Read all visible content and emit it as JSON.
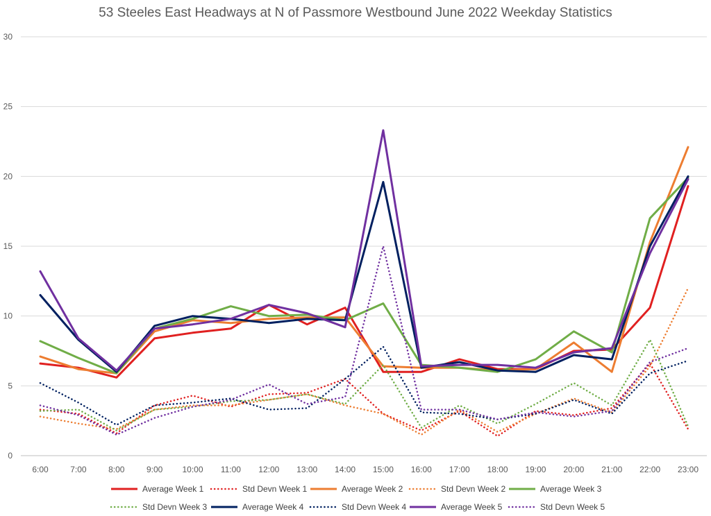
{
  "chart_data": {
    "type": "line",
    "title": "53 Steeles East Headways at N of Passmore Westbound June 2022 Weekday Statistics",
    "categories": [
      "6:00",
      "7:00",
      "8:00",
      "9:00",
      "10:00",
      "11:00",
      "12:00",
      "13:00",
      "14:00",
      "15:00",
      "16:00",
      "17:00",
      "18:00",
      "19:00",
      "20:00",
      "21:00",
      "22:00",
      "23:00"
    ],
    "ylim": [
      0,
      30
    ],
    "yticks": [
      "0",
      "5",
      "10",
      "15",
      "20",
      "25",
      "30"
    ],
    "grid": true,
    "legend_position": "bottom",
    "series": [
      {
        "name": "Average Week 1",
        "color": "#e02020",
        "dashed": false,
        "values": [
          6.6,
          6.3,
          5.6,
          8.4,
          8.8,
          9.1,
          10.8,
          9.4,
          10.6,
          6.0,
          6.0,
          6.9,
          6.2,
          6.2,
          7.5,
          7.6,
          10.6,
          19.3
        ]
      },
      {
        "name": "Std Devn Week 1",
        "color": "#e02020",
        "dashed": true,
        "values": [
          3.3,
          3.0,
          1.6,
          3.6,
          4.3,
          3.5,
          4.4,
          4.5,
          5.5,
          3.0,
          1.8,
          3.2,
          1.4,
          3.2,
          2.9,
          3.4,
          6.6,
          1.9
        ]
      },
      {
        "name": "Average Week 2",
        "color": "#ed7d31",
        "dashed": false,
        "values": [
          7.1,
          6.2,
          5.9,
          8.9,
          9.7,
          9.5,
          9.8,
          9.9,
          9.9,
          6.4,
          6.3,
          6.3,
          6.1,
          6.2,
          8.1,
          6.0,
          15.3,
          22.1
        ]
      },
      {
        "name": "Std Devn Week 2",
        "color": "#ed7d31",
        "dashed": true,
        "values": [
          2.8,
          2.3,
          1.9,
          3.3,
          3.6,
          3.6,
          4.0,
          4.4,
          3.6,
          3.0,
          1.5,
          3.3,
          1.7,
          3.0,
          4.1,
          3.1,
          6.4,
          12.0
        ]
      },
      {
        "name": "Average Week 3",
        "color": "#70ad47",
        "dashed": false,
        "values": [
          8.2,
          7.0,
          5.9,
          9.1,
          9.8,
          10.7,
          10.0,
          10.1,
          9.7,
          10.9,
          6.5,
          6.3,
          6.0,
          6.9,
          8.9,
          7.4,
          17.0,
          19.9
        ]
      },
      {
        "name": "Std Devn Week 3",
        "color": "#70ad47",
        "dashed": true,
        "values": [
          3.2,
          3.3,
          1.8,
          3.3,
          3.5,
          3.9,
          4.0,
          4.4,
          3.7,
          6.5,
          2.0,
          3.6,
          2.3,
          3.7,
          5.2,
          3.6,
          8.3,
          2.1
        ]
      },
      {
        "name": "Average Week 4",
        "color": "#002060",
        "dashed": false,
        "values": [
          11.5,
          8.3,
          6.0,
          9.3,
          10.0,
          9.8,
          9.5,
          9.8,
          9.7,
          19.6,
          6.3,
          6.7,
          6.1,
          6.0,
          7.2,
          6.9,
          15.0,
          20.0
        ]
      },
      {
        "name": "Std Devn Week 4",
        "color": "#002060",
        "dashed": true,
        "values": [
          5.2,
          3.8,
          2.2,
          3.6,
          3.8,
          4.1,
          3.3,
          3.4,
          5.5,
          7.8,
          3.1,
          3.0,
          2.6,
          3.0,
          4.0,
          3.0,
          5.9,
          6.8
        ]
      },
      {
        "name": "Average Week 5",
        "color": "#7030a0",
        "dashed": false,
        "values": [
          13.2,
          8.4,
          6.1,
          9.1,
          9.4,
          9.8,
          10.8,
          10.2,
          9.2,
          23.3,
          6.4,
          6.5,
          6.5,
          6.3,
          7.4,
          7.7,
          14.5,
          19.8
        ]
      },
      {
        "name": "Std Devn Week 5",
        "color": "#7030a0",
        "dashed": true,
        "values": [
          3.6,
          2.9,
          1.5,
          2.7,
          3.5,
          4.0,
          5.1,
          3.7,
          4.2,
          15.0,
          3.3,
          3.3,
          2.6,
          3.1,
          2.8,
          3.2,
          6.7,
          7.7
        ]
      }
    ]
  }
}
